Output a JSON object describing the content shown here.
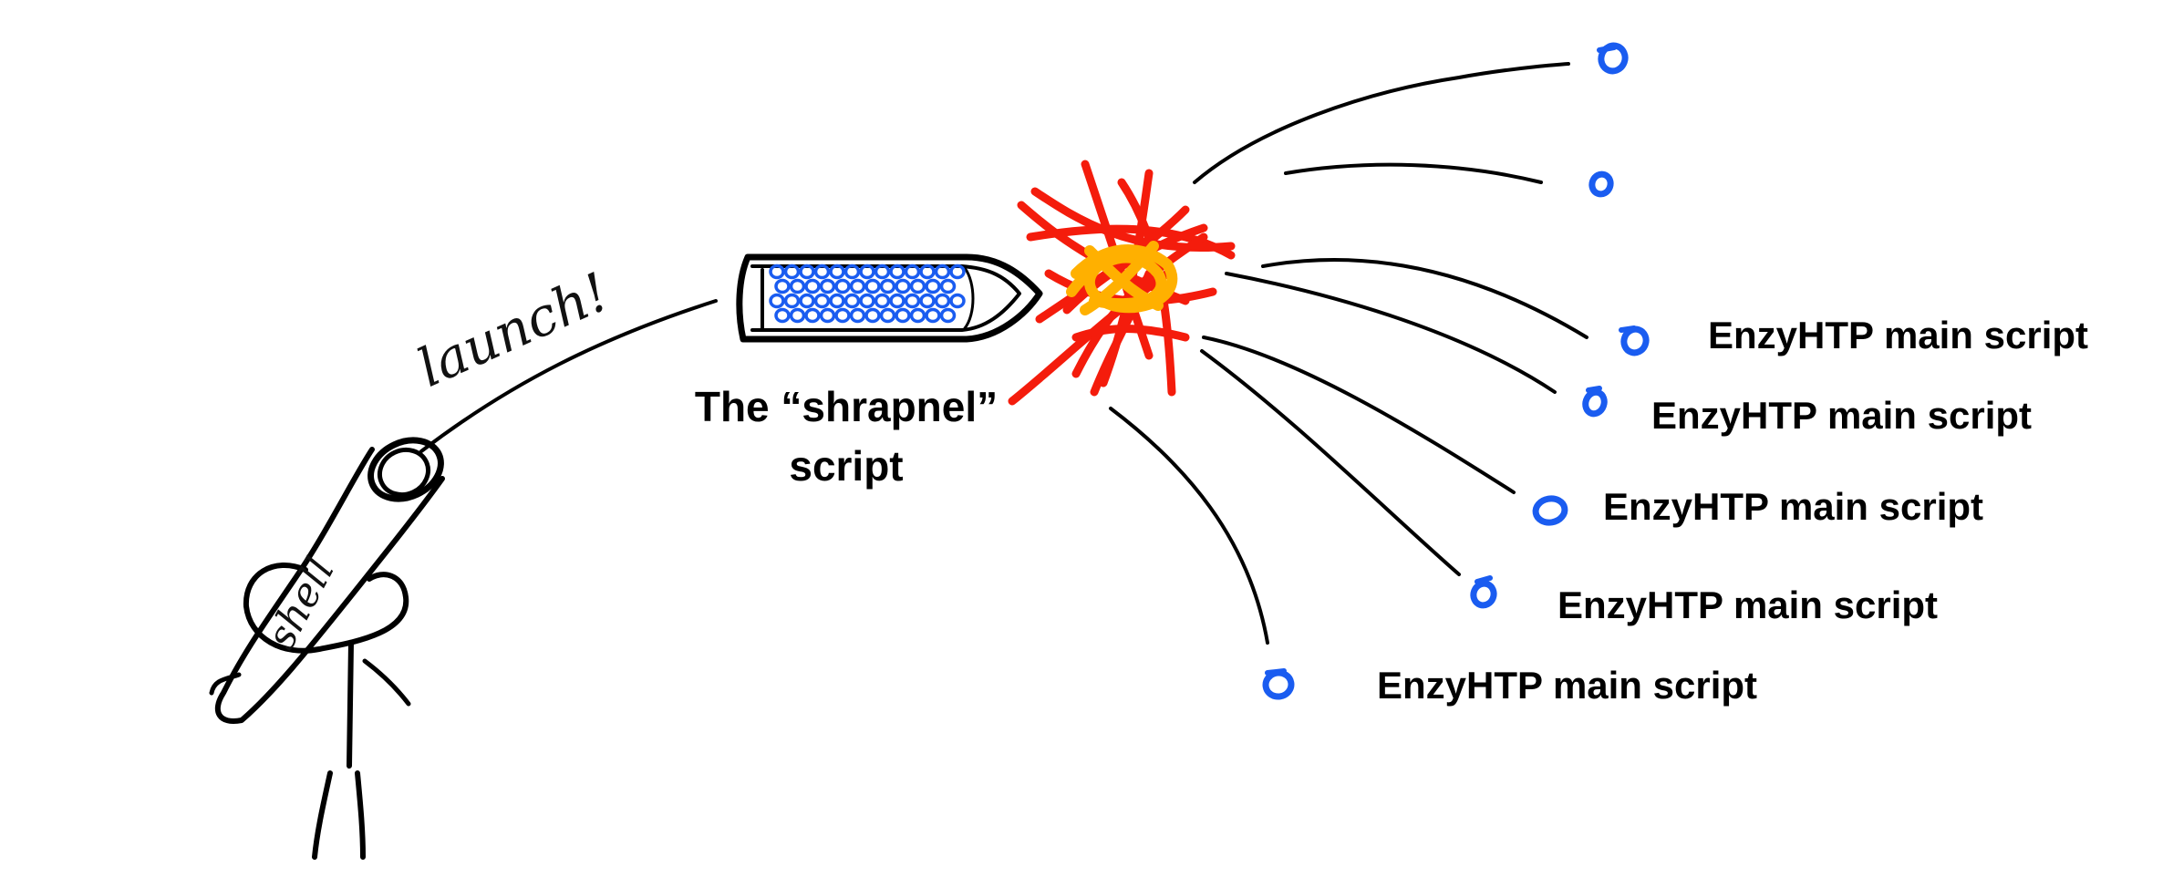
{
  "colors": {
    "ink": "#000000",
    "pellet_blue": "#1a5cf0",
    "explosion_red": "#f41c0c",
    "explosion_orange": "#ffb000",
    "background": "#ffffff"
  },
  "launcher": {
    "tube_label": "shell",
    "launch_label": "launch!"
  },
  "shell_projectile": {
    "caption_line1": "The “shrapnel”",
    "caption_line2": "script"
  },
  "fragments": [
    {
      "label": ""
    },
    {
      "label": ""
    },
    {
      "label": "EnzyHTP main script"
    },
    {
      "label": "EnzyHTP main script"
    },
    {
      "label": "EnzyHTP main script"
    },
    {
      "label": "EnzyHTP main script"
    },
    {
      "label": "EnzyHTP main script"
    }
  ]
}
